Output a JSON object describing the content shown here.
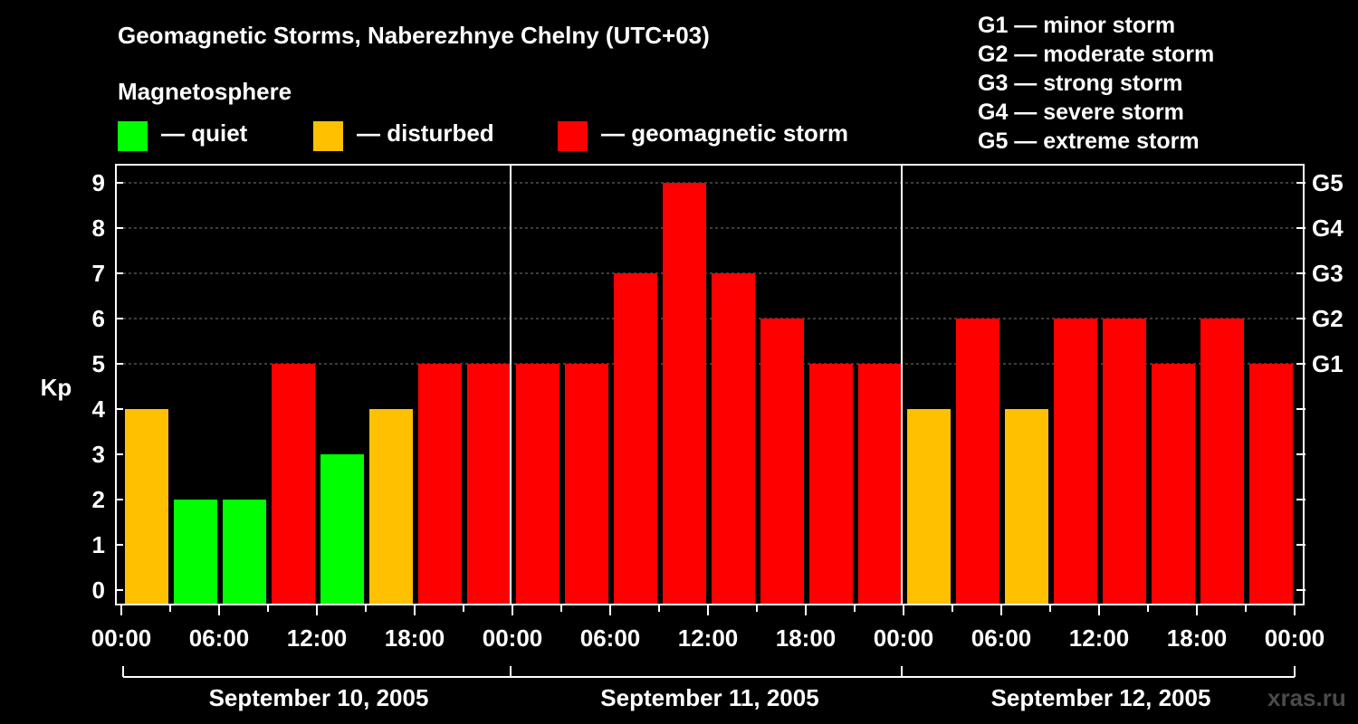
{
  "header": {
    "title": "Geomagnetic Storms, Naberezhnye Chelny (UTC+03)",
    "magnetosphere_label": "Magnetosphere",
    "legend": [
      {
        "label": "— quiet",
        "color": "#00ff00"
      },
      {
        "label": "— disturbed",
        "color": "#ffc000"
      },
      {
        "label": "— geomagnetic storm",
        "color": "#ff0000"
      }
    ],
    "storm_scale": [
      "G1 — minor storm",
      "G2 — moderate storm",
      "G3 — strong storm",
      "G4 — severe storm",
      "G5 — extreme storm"
    ]
  },
  "watermark": "xras.ru",
  "chart_data": {
    "type": "bar",
    "title": "Geomagnetic Storms, Naberezhnye Chelny (UTC+03)",
    "ylabel": "Kp",
    "ylim": [
      0,
      9
    ],
    "y_ticks": [
      "0",
      "1",
      "2",
      "3",
      "4",
      "5",
      "6",
      "7",
      "8",
      "9"
    ],
    "right_ticks": [
      {
        "kp": 5,
        "label": "G1"
      },
      {
        "kp": 6,
        "label": "G2"
      },
      {
        "kp": 7,
        "label": "G3"
      },
      {
        "kp": 8,
        "label": "G4"
      },
      {
        "kp": 9,
        "label": "G5"
      }
    ],
    "x_tick_labels": [
      "00:00",
      "06:00",
      "12:00",
      "18:00",
      "00:00",
      "06:00",
      "12:00",
      "18:00",
      "00:00",
      "06:00",
      "12:00",
      "18:00",
      "00:00"
    ],
    "days": [
      "September 10, 2005",
      "September 11, 2005",
      "September 12, 2005"
    ],
    "colors": {
      "quiet": "#00ff00",
      "disturbed": "#ffc000",
      "storm": "#ff0000"
    },
    "values": [
      4,
      2,
      2,
      5,
      3,
      4,
      5,
      5,
      5,
      5,
      7,
      9,
      7,
      6,
      5,
      5,
      4,
      6,
      4,
      6,
      6,
      5,
      6,
      5
    ]
  }
}
